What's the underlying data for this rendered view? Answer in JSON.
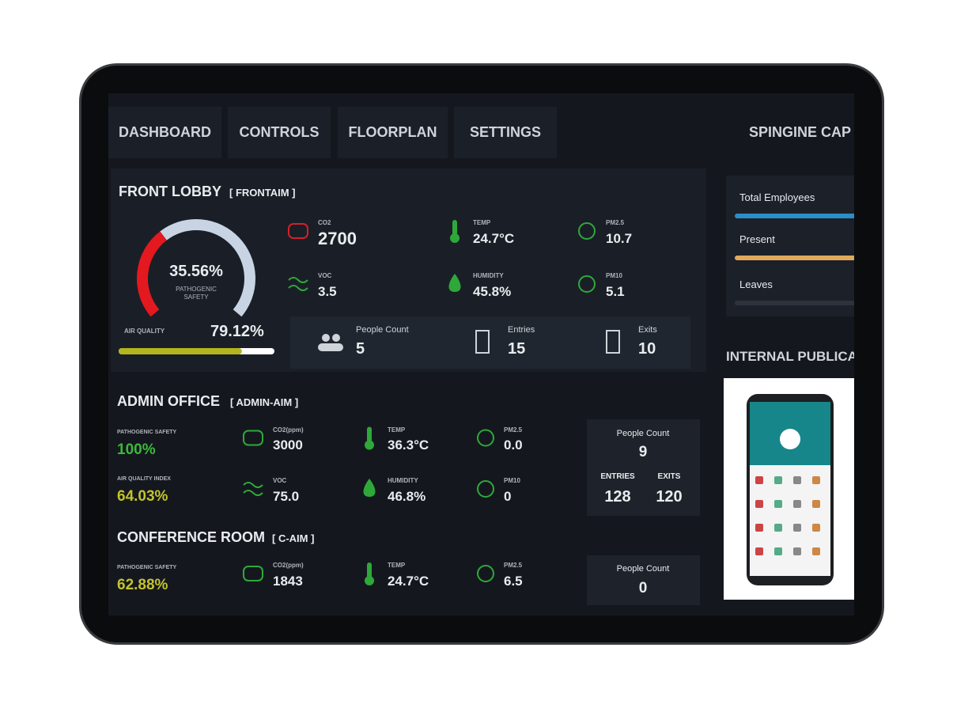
{
  "nav": {
    "tabs": [
      "DASHBOARD",
      "CONTROLS",
      "FLOORPLAN",
      "SETTINGS"
    ],
    "brand": "SPINGINE CAP"
  },
  "front_lobby": {
    "title": "FRONT LOBBY",
    "tag": "[ FRONTAIM ]",
    "gauge": {
      "value": 35.56,
      "label": "35.56%",
      "caption": "PATHOGENIC SAFETY"
    },
    "air_quality": {
      "label": "AIR QUALITY",
      "value": 79.12,
      "value_label": "79.12%"
    },
    "metrics": [
      {
        "label": "CO2",
        "value": "2700"
      },
      {
        "label": "TEMP",
        "value": "24.7°C"
      },
      {
        "label": "PM2.5",
        "value": "10.7"
      },
      {
        "label": "VOC",
        "value": "3.5"
      },
      {
        "label": "HUMIDITY",
        "value": "45.8%"
      },
      {
        "label": "PM10",
        "value": "5.1"
      }
    ],
    "counts": [
      {
        "label": "People Count",
        "value": "5"
      },
      {
        "label": "Entries",
        "value": "15"
      },
      {
        "label": "Exits",
        "value": "10"
      }
    ]
  },
  "admin_office": {
    "title": "ADMIN OFFICE",
    "tag": "[ ADMIN-AIM ]",
    "indices": [
      {
        "label": "PATHOGENIC SAFETY",
        "value": "100%",
        "color": "#3cb83c"
      },
      {
        "label": "AIR QUALITY INDEX",
        "value": "64.03%",
        "color": "#c3c32c"
      }
    ],
    "metrics": [
      {
        "label": "CO2(ppm)",
        "value": "3000"
      },
      {
        "label": "TEMP",
        "value": "36.3°C"
      },
      {
        "label": "PM2.5",
        "value": "0.0"
      },
      {
        "label": "VOC",
        "value": "75.0"
      },
      {
        "label": "HUMIDITY",
        "value": "46.8%"
      },
      {
        "label": "PM10",
        "value": "0"
      }
    ],
    "people": {
      "label": "People Count",
      "value": "9"
    },
    "flows": [
      {
        "label": "ENTRIES",
        "value": "128"
      },
      {
        "label": "EXITS",
        "value": "120"
      }
    ]
  },
  "conference_room": {
    "title": "CONFERENCE ROOM",
    "tag": "[ C-AIM ]",
    "indices": [
      {
        "label": "PATHOGENIC SAFETY",
        "value": "62.88%",
        "color": "#c3c32c"
      }
    ],
    "metrics": [
      {
        "label": "CO2(ppm)",
        "value": "1843"
      },
      {
        "label": "TEMP",
        "value": "24.7°C"
      },
      {
        "label": "PM2.5",
        "value": "6.5"
      }
    ],
    "people": {
      "label": "People Count",
      "value": "0"
    }
  },
  "attendance": {
    "rows": [
      "Total Employees",
      "Present",
      "Leaves"
    ]
  },
  "publications": {
    "title": "INTERNAL PUBLICA"
  }
}
